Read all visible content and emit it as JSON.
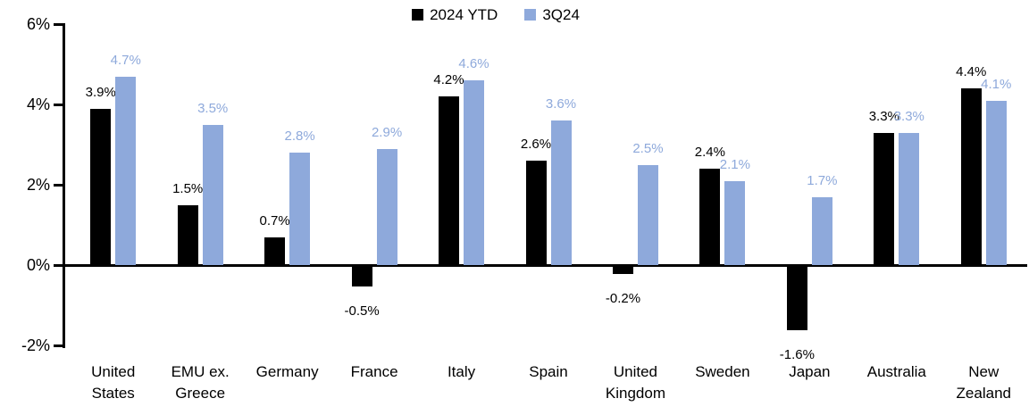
{
  "chart_data": {
    "type": "bar",
    "title": "",
    "categories": [
      "United States",
      "EMU ex. Greece",
      "Germany",
      "France",
      "Italy",
      "Spain",
      "United Kingdom",
      "Sweden",
      "Japan",
      "Australia",
      "New Zealand"
    ],
    "series": [
      {
        "name": "2024 YTD",
        "color": "#000000",
        "values": [
          3.9,
          1.5,
          0.7,
          -0.5,
          4.2,
          2.6,
          -0.2,
          2.4,
          -1.6,
          3.3,
          4.4
        ],
        "labels": [
          "3.9%",
          "1.5%",
          "0.7%",
          "-0.5%",
          "4.2%",
          "2.6%",
          "-0.2%",
          "2.4%",
          "-1.6%",
          "3.3%",
          "4.4%"
        ]
      },
      {
        "name": "3Q24",
        "color": "#8EA9DB",
        "values": [
          4.7,
          3.5,
          2.8,
          2.9,
          4.6,
          3.6,
          2.5,
          2.1,
          1.7,
          3.3,
          4.1
        ],
        "labels": [
          "4.7%",
          "3.5%",
          "2.8%",
          "2.9%",
          "4.6%",
          "3.6%",
          "2.5%",
          "2.1%",
          "1.7%",
          "3.3%",
          "4.1%"
        ]
      }
    ],
    "y_axis": {
      "min": -2,
      "max": 6,
      "ticks": [
        {
          "value": 6,
          "label": "6%"
        },
        {
          "value": 4,
          "label": "4%"
        },
        {
          "value": 2,
          "label": "2%"
        },
        {
          "value": 0,
          "label": "0%"
        },
        {
          "value": -2,
          "label": "-2%"
        }
      ]
    },
    "legend_position": "top-center",
    "grid": false,
    "background": "#FFFFFF"
  }
}
